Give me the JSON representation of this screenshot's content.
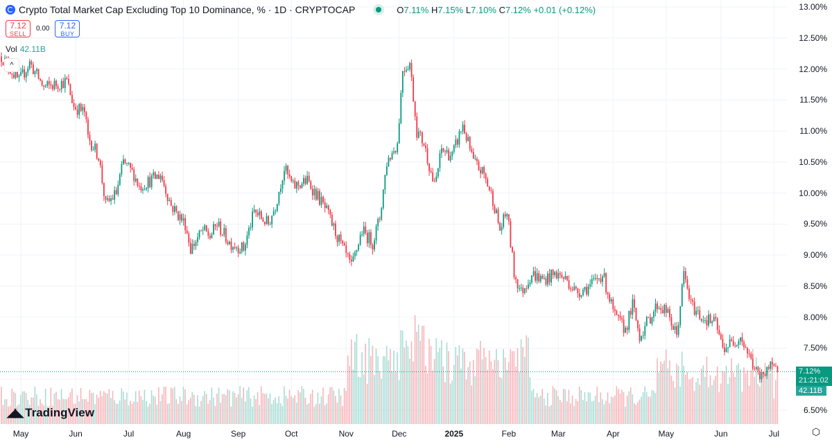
{
  "header": {
    "title": "Crypto Total Market Cap Excluding Top 10 Dominance, % · 1D · CRYPTOCAP",
    "o_label": "O",
    "o": "7.11%",
    "h_label": "H",
    "h": "7.15%",
    "l_label": "L",
    "l": "7.10%",
    "c_label": "C",
    "c": "7.12%",
    "change": "+0.01 (+0.12%)"
  },
  "trade": {
    "sell_price": "7.12",
    "sell_label": "SELL",
    "spread": "0.00",
    "buy_price": "7.12",
    "buy_label": "BUY"
  },
  "volume": {
    "label": "Vol",
    "value": "42.11B"
  },
  "collapse_icon": "chevron-up-icon",
  "price_label": {
    "price": "7.12%",
    "countdown": "21:21:02",
    "volume": "42.11B"
  },
  "brand": "TradingView",
  "colors": {
    "up": "#089981",
    "down": "#f23645",
    "vol_up": "#a8dcd4",
    "vol_down": "#f7b5ba",
    "grid": "#f0f3fa"
  },
  "chart_data": {
    "type": "candlestick",
    "title": "Crypto Total Market Cap Excluding Top 10 Dominance, %",
    "interval": "1D",
    "start_date": "2024-04-20",
    "y_ticks": [
      "13.00%",
      "12.50%",
      "12.00%",
      "11.50%",
      "11.00%",
      "10.50%",
      "10.00%",
      "9.50%",
      "9.00%",
      "8.50%",
      "8.00%",
      "7.50%",
      "7.00%",
      "6.50%"
    ],
    "ylim": [
      6.5,
      13.0
    ],
    "x_ticks": [
      {
        "label": "May",
        "day": 11
      },
      {
        "label": "Jun",
        "day": 42
      },
      {
        "label": "Jul",
        "day": 72
      },
      {
        "label": "Aug",
        "day": 103
      },
      {
        "label": "Sep",
        "day": 134
      },
      {
        "label": "Oct",
        "day": 164
      },
      {
        "label": "Nov",
        "day": 195
      },
      {
        "label": "Dec",
        "day": 225
      },
      {
        "label": "2025",
        "day": 256,
        "bold": true
      },
      {
        "label": "Feb",
        "day": 287
      },
      {
        "label": "Mar",
        "day": 315
      },
      {
        "label": "Apr",
        "day": 346
      },
      {
        "label": "May",
        "day": 376
      },
      {
        "label": "Jun",
        "day": 407
      },
      {
        "label": "Jul",
        "day": 437
      }
    ],
    "last_close": 7.12,
    "close_anchors_day_value": [
      [
        0,
        12.2
      ],
      [
        10,
        11.8
      ],
      [
        16,
        12.1
      ],
      [
        24,
        11.7
      ],
      [
        37,
        11.8
      ],
      [
        41,
        11.4
      ],
      [
        47,
        11.3
      ],
      [
        49,
        10.9
      ],
      [
        55,
        10.6
      ],
      [
        59,
        9.8
      ],
      [
        65,
        10.0
      ],
      [
        69,
        10.5
      ],
      [
        75,
        10.3
      ],
      [
        78,
        10.1
      ],
      [
        90,
        10.3
      ],
      [
        96,
        9.8
      ],
      [
        104,
        9.5
      ],
      [
        107,
        9.1
      ],
      [
        114,
        9.4
      ],
      [
        118,
        9.3
      ],
      [
        122,
        9.5
      ],
      [
        129,
        9.2
      ],
      [
        137,
        9.1
      ],
      [
        143,
        9.7
      ],
      [
        151,
        9.5
      ],
      [
        155,
        9.8
      ],
      [
        160,
        10.4
      ],
      [
        165,
        10.1
      ],
      [
        173,
        10.2
      ],
      [
        180,
        9.9
      ],
      [
        184,
        9.7
      ],
      [
        190,
        9.3
      ],
      [
        198,
        8.8
      ],
      [
        204,
        9.4
      ],
      [
        210,
        9.2
      ],
      [
        214,
        9.6
      ],
      [
        218,
        10.5
      ],
      [
        224,
        10.8
      ],
      [
        227,
        12.0
      ],
      [
        231,
        12.1
      ],
      [
        235,
        11.0
      ],
      [
        239,
        10.8
      ],
      [
        245,
        10.1
      ],
      [
        249,
        10.7
      ],
      [
        255,
        10.6
      ],
      [
        261,
        11.1
      ],
      [
        267,
        10.5
      ],
      [
        273,
        10.3
      ],
      [
        278,
        9.9
      ],
      [
        282,
        9.4
      ],
      [
        286,
        9.7
      ],
      [
        290,
        8.7
      ],
      [
        294,
        8.4
      ],
      [
        300,
        8.7
      ],
      [
        306,
        8.6
      ],
      [
        314,
        8.7
      ],
      [
        320,
        8.6
      ],
      [
        325,
        8.4
      ],
      [
        333,
        8.5
      ],
      [
        340,
        8.7
      ],
      [
        347,
        8.0
      ],
      [
        353,
        7.8
      ],
      [
        357,
        8.2
      ],
      [
        361,
        7.7
      ],
      [
        367,
        8.0
      ],
      [
        371,
        8.2
      ],
      [
        376,
        8.1
      ],
      [
        382,
        7.7
      ],
      [
        386,
        8.7
      ],
      [
        390,
        8.2
      ],
      [
        396,
        8.0
      ],
      [
        404,
        7.9
      ],
      [
        408,
        7.5
      ],
      [
        414,
        7.6
      ],
      [
        418,
        7.7
      ],
      [
        424,
        7.3
      ],
      [
        429,
        7.0
      ],
      [
        433,
        7.2
      ],
      [
        439,
        7.12
      ]
    ]
  }
}
